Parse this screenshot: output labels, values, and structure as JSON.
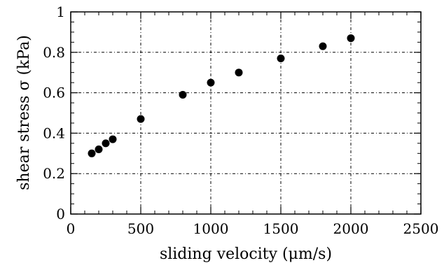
{
  "chart_data": {
    "type": "scatter",
    "title": "",
    "xlabel": "sliding velocity (μm/s)",
    "ylabel": "shear stress σ (kPa)",
    "xlim": [
      0,
      2500
    ],
    "ylim": [
      0,
      1
    ],
    "x_ticks": [
      "0",
      "500",
      "1000",
      "1500",
      "2000",
      "2500"
    ],
    "y_ticks": [
      "0",
      "0.2",
      "0.4",
      "0.6",
      "0.8",
      "1"
    ],
    "grid": true,
    "series": [
      {
        "x": [
          150,
          200,
          250,
          300,
          500,
          800,
          1000,
          1200,
          1500,
          1800,
          2000
        ],
        "y": [
          0.3,
          0.32,
          0.35,
          0.37,
          0.47,
          0.59,
          0.65,
          0.7,
          0.77,
          0.83,
          0.87
        ]
      }
    ]
  }
}
